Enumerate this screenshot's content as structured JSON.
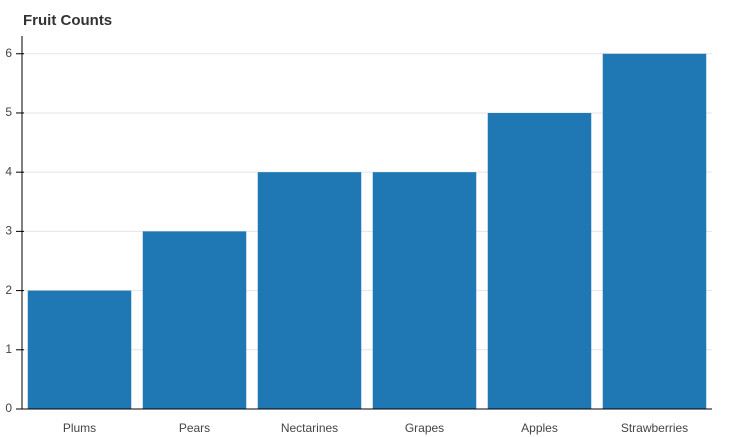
{
  "chart_data": {
    "type": "bar",
    "title": "Fruit Counts",
    "categories": [
      "Plums",
      "Pears",
      "Nectarines",
      "Grapes",
      "Apples",
      "Strawberries"
    ],
    "values": [
      2,
      3,
      4,
      4,
      5,
      6
    ],
    "color": "#1f77b4",
    "ylim": [
      0,
      6.3
    ],
    "yticks": [
      0,
      1,
      2,
      3,
      4,
      5,
      6
    ],
    "grid": true
  }
}
